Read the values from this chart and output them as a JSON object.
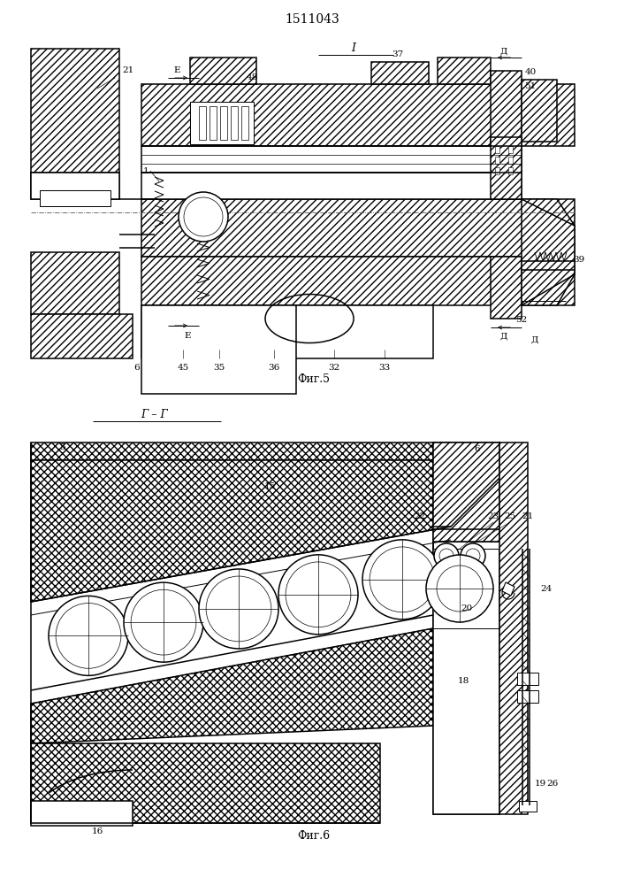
{
  "title": "1511043",
  "bg_color": "#ffffff",
  "line_color": "#000000",
  "fig5_caption": "Фиг.5",
  "fig6_caption": "Фиг.6",
  "fig5_section": "I",
  "fig6_section": "Г – Г",
  "lw": 0.7
}
